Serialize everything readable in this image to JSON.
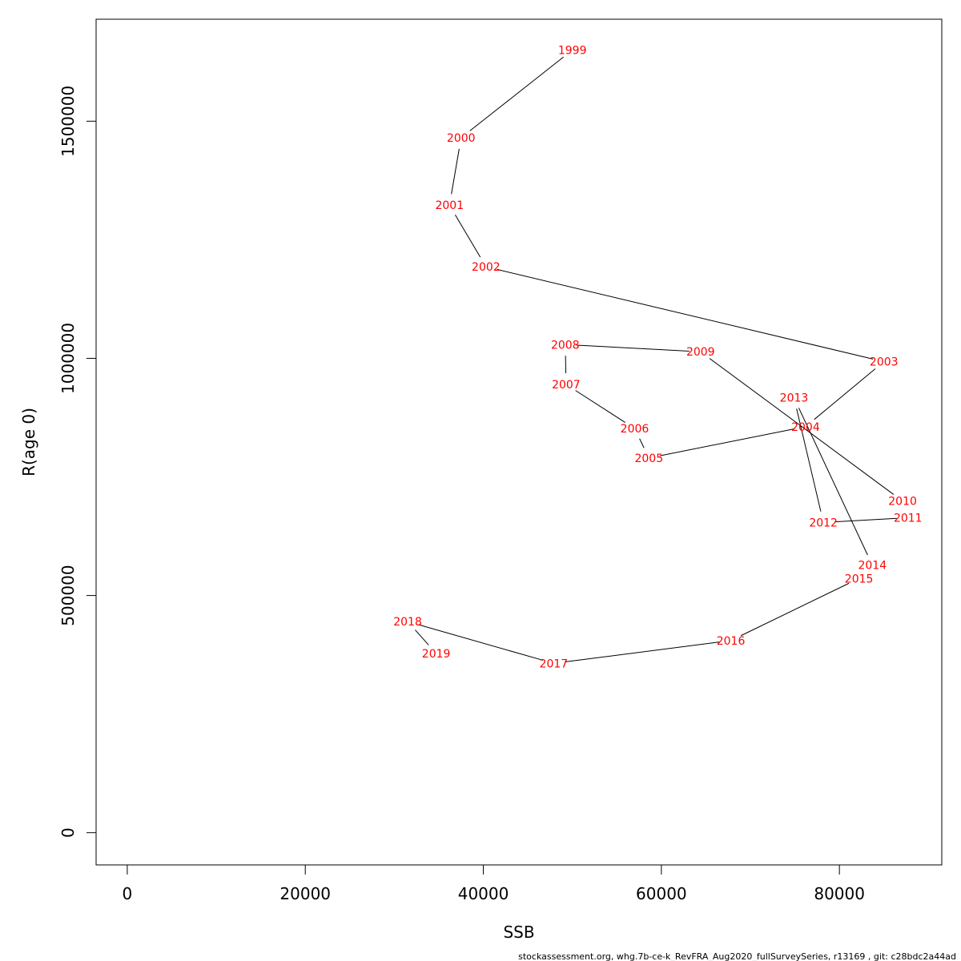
{
  "chart_data": {
    "type": "line",
    "xlabel": "SSB",
    "ylabel": "R(age 0)",
    "xlim": [
      -3500,
      91500
    ],
    "ylim": [
      -68000,
      1715000
    ],
    "x_ticks": [
      0,
      20000,
      40000,
      60000,
      80000
    ],
    "x_tick_labels": [
      "0",
      "20000",
      "40000",
      "60000",
      "80000"
    ],
    "y_ticks": [
      0,
      500000,
      1000000,
      1500000
    ],
    "y_tick_labels": [
      "0",
      "500000",
      "1000000",
      "1500000"
    ],
    "grid": false,
    "legend": "none",
    "line_color": "#000000",
    "label_color": "#ff0000",
    "series": [
      {
        "points": [
          {
            "year": "1999",
            "x": 50000,
            "y": 1650000
          },
          {
            "year": "2000",
            "x": 37500,
            "y": 1465000
          },
          {
            "year": "2001",
            "x": 36200,
            "y": 1323000
          },
          {
            "year": "2002",
            "x": 40300,
            "y": 1193000
          },
          {
            "year": "2003",
            "x": 85000,
            "y": 993000
          },
          {
            "year": "2004",
            "x": 76200,
            "y": 856000
          },
          {
            "year": "2005",
            "x": 58600,
            "y": 790000
          },
          {
            "year": "2006",
            "x": 57000,
            "y": 852000
          },
          {
            "year": "2007",
            "x": 49300,
            "y": 945000
          },
          {
            "year": "2008",
            "x": 49200,
            "y": 1029000
          },
          {
            "year": "2009",
            "x": 64400,
            "y": 1014000
          },
          {
            "year": "2010",
            "x": 87100,
            "y": 699000
          },
          {
            "year": "2011",
            "x": 87700,
            "y": 664000
          },
          {
            "year": "2012",
            "x": 78200,
            "y": 654000
          },
          {
            "year": "2013",
            "x": 74900,
            "y": 917000
          },
          {
            "year": "2014",
            "x": 83700,
            "y": 564000
          },
          {
            "year": "2015",
            "x": 82200,
            "y": 536000
          },
          {
            "year": "2016",
            "x": 67800,
            "y": 405000
          },
          {
            "year": "2017",
            "x": 47900,
            "y": 357000
          },
          {
            "year": "2018",
            "x": 31500,
            "y": 445000
          },
          {
            "year": "2019",
            "x": 34700,
            "y": 378000
          }
        ]
      }
    ]
  },
  "footer": "stockassessment.org, whg.7b-ce-k_RevFRA_Aug2020_fullSurveySeries, r13169 , git: c28bdc2a44ad"
}
